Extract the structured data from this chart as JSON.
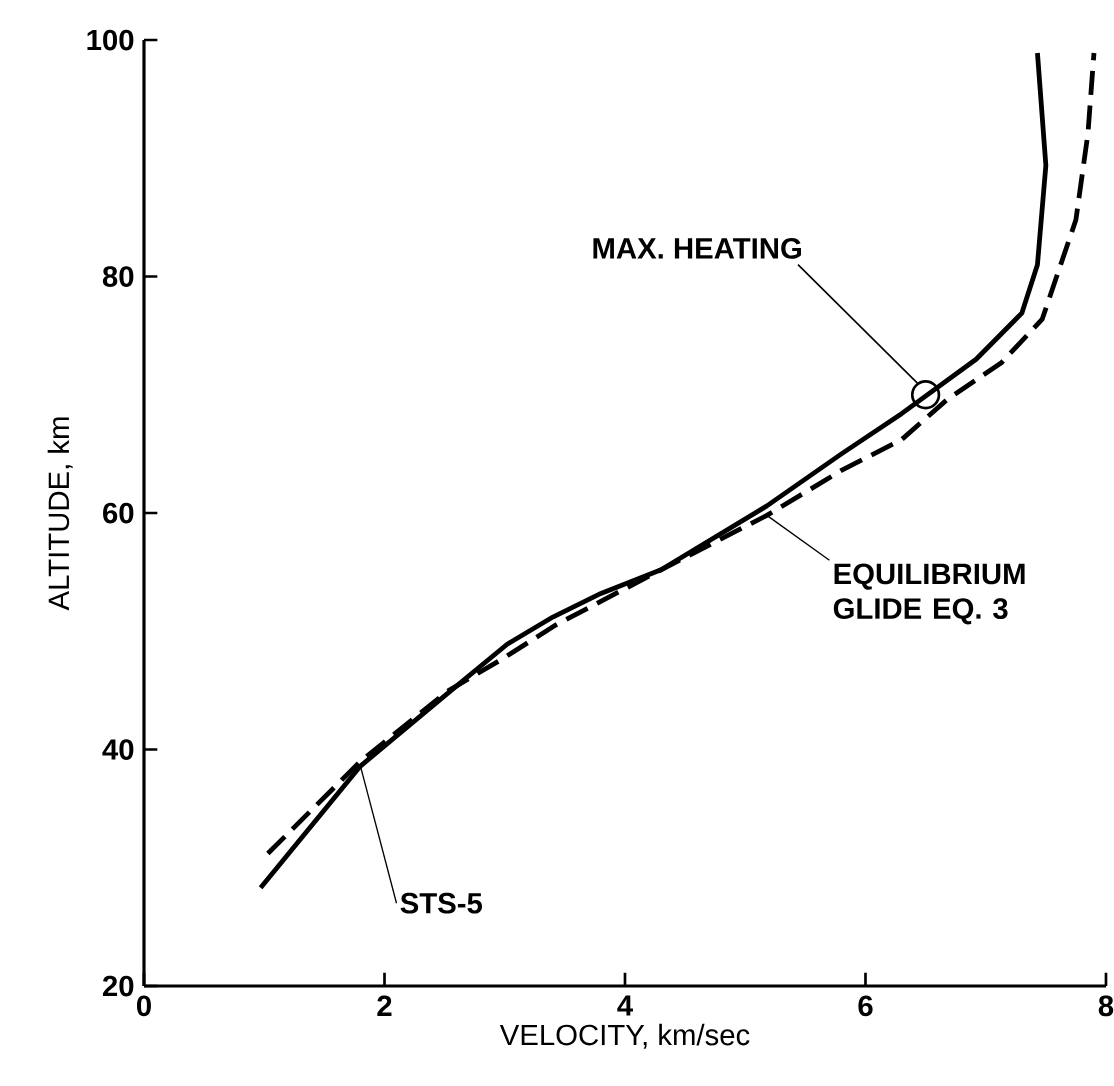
{
  "chart_data": {
    "type": "line",
    "xlabel": "VELOCITY, km/sec",
    "ylabel": "ALTITUDE, km",
    "xlim": [
      0,
      8
    ],
    "ylim": [
      20,
      100
    ],
    "xticks": [
      0,
      2,
      4,
      6,
      8
    ],
    "yticks": [
      20,
      40,
      60,
      80,
      100
    ],
    "grid": false,
    "legend": false,
    "series": [
      {
        "name": "STS-5",
        "color": "#000000",
        "line_style": "solid",
        "x": [
          0.97,
          1.8,
          2.52,
          3.02,
          3.4,
          3.8,
          4.3,
          5.18,
          5.8,
          6.3,
          6.92,
          7.3,
          7.43,
          7.5,
          7.43
        ],
        "values": [
          28.3,
          38.6,
          44.7,
          48.9,
          51.2,
          53.2,
          55.2,
          60.6,
          65,
          68.4,
          73,
          76.9,
          81,
          89.4,
          98.9
        ]
      },
      {
        "name": "EQUILIBRIUM GLIDE EQ. 3",
        "color": "#000000",
        "line_style": "dashed",
        "x": [
          1.03,
          1.8,
          2.52,
          2.97,
          3.42,
          4.3,
          5.18,
          5.8,
          6.3,
          6.68,
          7.13,
          7.47,
          7.75,
          7.85,
          7.9
        ],
        "values": [
          31.2,
          39,
          44.9,
          47.6,
          50.5,
          55.2,
          59.8,
          63.6,
          66.2,
          69.6,
          72.7,
          76.4,
          84.8,
          92.1,
          98.9
        ]
      }
    ],
    "annotations": [
      {
        "text": "MAX. HEATING",
        "x": 6.5,
        "y": 70
      }
    ]
  }
}
